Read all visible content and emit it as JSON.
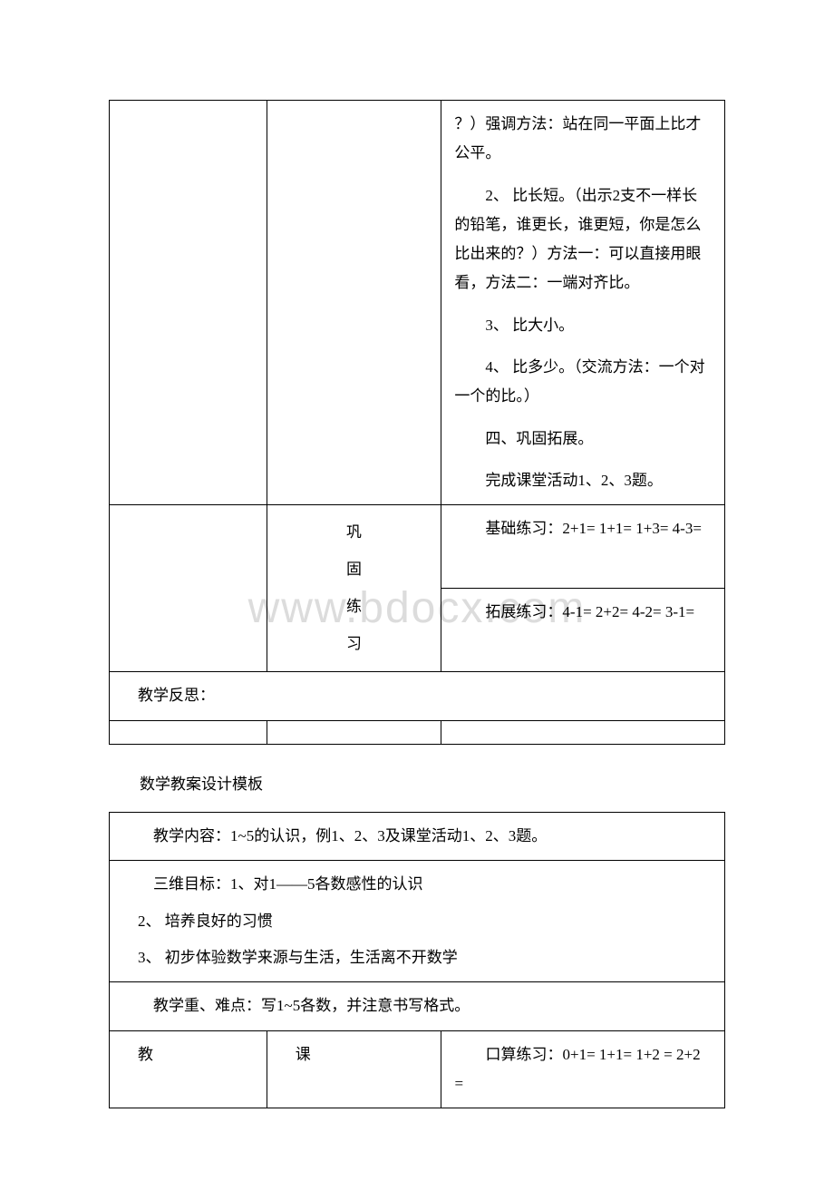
{
  "watermark": "www.bdocx.com",
  "table1": {
    "main_cell": {
      "p1": "？）强调方法：站在同一平面上比才公平。",
      "p2": "2、 比长短。（出示2支不一样长的铅笔，谁更长，谁更短，你是怎么比出来的？）方法一：可以直接用眼看，方法二：一端对齐比。",
      "p3": "3、 比大小。",
      "p4": "4、 比多少。（交流方法：一个对一个的比。）",
      "p5": "四、巩固拓展。",
      "p6": "完成课堂活动1、2、3题。"
    },
    "practice_label": "巩\n固\n练\n习",
    "basic": "基础练习：2+1= 1+1= 1+3= 4-3=",
    "ext": "拓展练习：4-1= 2+2= 4-2= 3-1=",
    "reflection": "教学反思："
  },
  "section_title": "数学教案设计模板",
  "table2": {
    "row1": "教学内容：1~5的认识，例1、2、3及课堂活动1、2、3题。",
    "row2_l1": "三维目标：1、对1——5各数感性的认识",
    "row2_l2": "2、 培养良好的习惯",
    "row2_l3": "3、 初步体验数学来源与生活，生活离不开数学",
    "row3": "教学重、难点：写1~5各数，并注意书写格式。",
    "row4_a": "教",
    "row4_b": "课",
    "row4_c": "口算练习：0+1= 1+1= 1+2 = 2+2 ="
  }
}
